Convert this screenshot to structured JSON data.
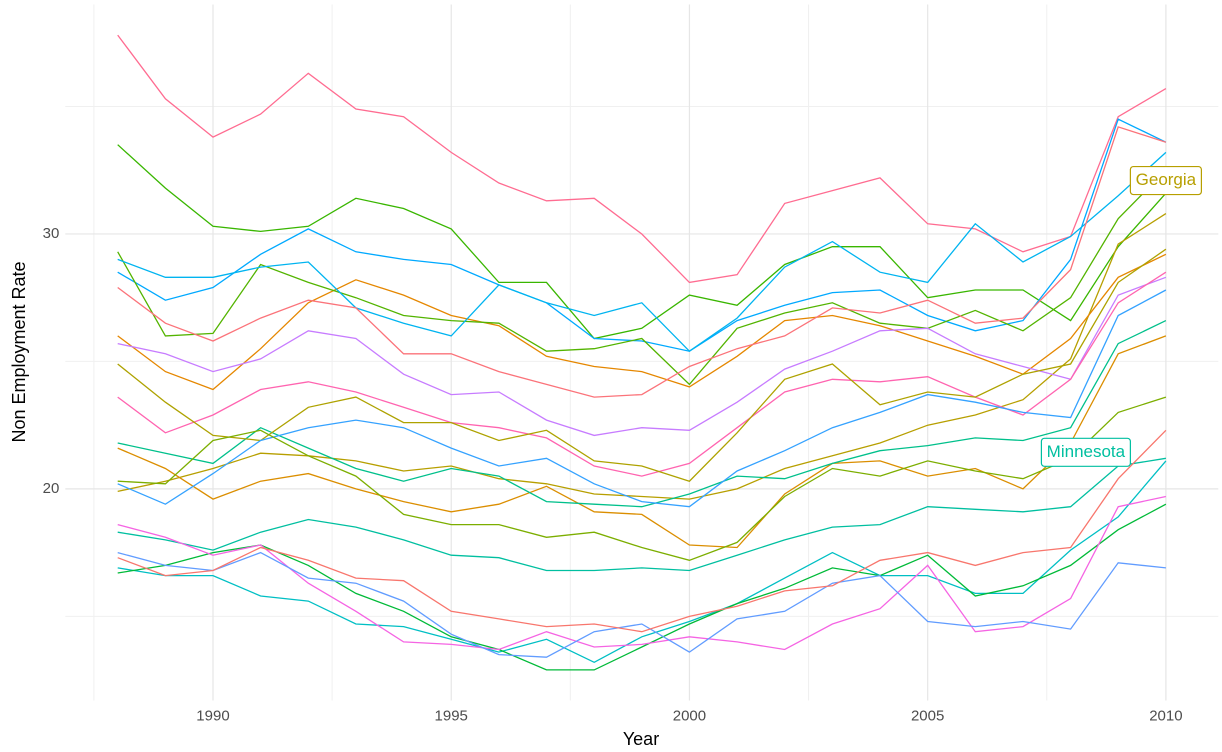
{
  "chart_data": {
    "type": "line",
    "x_label": "Year",
    "y_label": "Non Employment Rate",
    "x": [
      1988,
      1989,
      1990,
      1991,
      1992,
      1993,
      1994,
      1995,
      1996,
      1997,
      1998,
      1999,
      2000,
      2001,
      2002,
      2003,
      2004,
      2005,
      2006,
      2007,
      2008,
      2009,
      2010
    ],
    "xlim": [
      1986.9,
      2011.1
    ],
    "xticks": [
      1990,
      1995,
      2000,
      2005,
      2010
    ],
    "xminorticks": [
      1987.5,
      1992.5,
      1997.5,
      2002.5,
      2007.5
    ],
    "ylim": [
      11.7,
      39
    ],
    "yticks": [
      20,
      30
    ],
    "yminorticks": [
      15,
      25,
      35
    ],
    "grid": true,
    "series": [
      {
        "color": "#FF6C91",
        "values": [
          37.8,
          35.3,
          33.8,
          34.7,
          36.3,
          34.9,
          34.6,
          33.2,
          32.0,
          31.3,
          31.4,
          30.0,
          28.1,
          28.4,
          31.2,
          31.7,
          32.2,
          30.4,
          30.2,
          29.3,
          29.9,
          34.6,
          35.7
        ]
      },
      {
        "color": "#39B600",
        "values": [
          33.5,
          31.8,
          30.3,
          30.1,
          30.3,
          31.4,
          31.0,
          30.2,
          28.1,
          28.1,
          25.9,
          26.3,
          27.6,
          27.2,
          28.8,
          29.5,
          29.5,
          27.5,
          27.8,
          27.8,
          26.6,
          29.5,
          31.6
        ]
      },
      {
        "color": "#00A9FF",
        "values": [
          28.5,
          27.4,
          27.9,
          29.2,
          30.2,
          29.3,
          29.0,
          28.8,
          28.0,
          27.3,
          25.9,
          25.8,
          25.4,
          26.6,
          27.2,
          27.7,
          27.8,
          26.8,
          26.2,
          26.6,
          29.0,
          34.5,
          33.6
        ]
      },
      {
        "name": "Georgia",
        "color": "#B79F00",
        "values": [
          19.9,
          20.3,
          20.8,
          21.4,
          21.3,
          21.1,
          20.7,
          20.9,
          20.4,
          20.2,
          19.8,
          19.7,
          19.6,
          20.0,
          20.8,
          21.3,
          21.8,
          22.5,
          22.9,
          23.5,
          25.1,
          29.6,
          30.8
        ]
      },
      {
        "name": "Minnesota",
        "color": "#00BFA0",
        "values": [
          18.3,
          18.0,
          17.6,
          18.3,
          18.8,
          18.5,
          18.0,
          17.4,
          17.3,
          16.8,
          16.8,
          16.9,
          16.8,
          17.4,
          18.0,
          18.5,
          18.6,
          19.3,
          19.2,
          19.1,
          19.3,
          20.9,
          21.2
        ]
      },
      {
        "color": "#00BFC4",
        "values": [
          16.9,
          16.6,
          16.6,
          15.8,
          15.6,
          14.7,
          14.6,
          14.1,
          13.6,
          14.1,
          13.2,
          14.2,
          14.8,
          15.5,
          16.5,
          17.5,
          16.6,
          16.6,
          15.9,
          15.9,
          17.6,
          18.9,
          21.1
        ]
      },
      {
        "color": "#00BA38",
        "values": [
          16.7,
          17.0,
          17.5,
          17.8,
          17.0,
          15.9,
          15.2,
          14.2,
          13.7,
          12.9,
          12.9,
          13.8,
          14.7,
          15.5,
          16.1,
          16.9,
          16.6,
          17.4,
          15.8,
          16.2,
          17.0,
          18.4,
          19.4
        ]
      },
      {
        "color": "#F564E3",
        "values": [
          18.6,
          18.1,
          17.4,
          17.8,
          16.3,
          15.2,
          14.0,
          13.9,
          13.7,
          14.4,
          13.8,
          13.9,
          14.2,
          14.0,
          13.7,
          14.7,
          15.3,
          17.0,
          14.4,
          14.6,
          15.7,
          19.3,
          19.7
        ]
      },
      {
        "color": "#619CFF",
        "values": [
          17.5,
          17.0,
          16.8,
          17.5,
          16.5,
          16.3,
          15.6,
          14.3,
          13.5,
          13.4,
          14.4,
          14.7,
          13.6,
          14.9,
          15.2,
          16.3,
          16.6,
          14.8,
          14.6,
          14.8,
          14.5,
          17.1,
          16.9
        ]
      },
      {
        "color": "#F8766D",
        "values": [
          17.3,
          16.6,
          16.8,
          17.7,
          17.2,
          16.5,
          16.4,
          15.2,
          14.9,
          14.6,
          14.7,
          14.4,
          15.0,
          15.4,
          16.0,
          16.2,
          17.2,
          17.5,
          17.0,
          17.5,
          17.7,
          20.4,
          22.3
        ]
      },
      {
        "color": "#E58700",
        "values": [
          26.0,
          24.6,
          23.9,
          25.5,
          27.3,
          28.2,
          27.6,
          26.8,
          26.4,
          25.2,
          24.8,
          24.6,
          24.0,
          25.2,
          26.6,
          26.8,
          26.4,
          25.8,
          25.2,
          24.5,
          25.9,
          28.3,
          29.2
        ]
      },
      {
        "color": "#53B400",
        "values": [
          29.3,
          26.0,
          26.1,
          28.8,
          28.1,
          27.5,
          26.8,
          26.6,
          26.5,
          25.4,
          25.5,
          25.9,
          24.1,
          26.3,
          26.9,
          27.3,
          26.5,
          26.3,
          27.0,
          26.2,
          27.5,
          30.6,
          32.5
        ]
      },
      {
        "color": "#00B4F0",
        "values": [
          29.0,
          28.3,
          28.3,
          28.7,
          28.9,
          27.1,
          26.5,
          26.0,
          28.0,
          27.3,
          26.8,
          27.3,
          25.4,
          26.7,
          28.7,
          29.7,
          28.5,
          28.1,
          30.4,
          28.9,
          29.9,
          31.5,
          33.2
        ]
      },
      {
        "color": "#C77CFF",
        "values": [
          25.7,
          25.3,
          24.6,
          25.1,
          26.2,
          25.9,
          24.5,
          23.7,
          23.8,
          22.7,
          22.1,
          22.4,
          22.3,
          23.4,
          24.7,
          25.4,
          26.2,
          26.3,
          25.3,
          24.8,
          24.3,
          27.6,
          28.3
        ]
      },
      {
        "color": "#FF64B0",
        "values": [
          23.6,
          22.2,
          22.9,
          23.9,
          24.2,
          23.8,
          23.2,
          22.6,
          22.4,
          22.0,
          20.9,
          20.5,
          21.0,
          22.4,
          23.8,
          24.3,
          24.2,
          24.4,
          23.6,
          22.9,
          24.3,
          27.3,
          28.5
        ]
      },
      {
        "color": "#DB8E00",
        "values": [
          21.6,
          20.8,
          19.6,
          20.3,
          20.6,
          20.0,
          19.5,
          19.1,
          19.4,
          20.1,
          19.1,
          19.0,
          17.8,
          17.7,
          19.8,
          21.0,
          21.1,
          20.5,
          20.8,
          20.0,
          21.8,
          25.3,
          26.0
        ]
      },
      {
        "color": "#00C08B",
        "values": [
          21.8,
          21.4,
          21.0,
          22.4,
          21.6,
          20.8,
          20.3,
          20.8,
          20.5,
          19.5,
          19.4,
          19.3,
          19.8,
          20.5,
          20.4,
          21.0,
          21.5,
          21.7,
          22.0,
          21.9,
          22.4,
          25.7,
          26.6
        ]
      },
      {
        "color": "#AEA200",
        "values": [
          24.9,
          23.4,
          22.1,
          21.9,
          23.2,
          23.6,
          22.6,
          22.6,
          21.9,
          22.3,
          21.1,
          20.9,
          20.3,
          22.2,
          24.3,
          24.9,
          23.3,
          23.8,
          23.6,
          24.5,
          24.9,
          28.1,
          29.4
        ]
      },
      {
        "color": "#35A2FF",
        "values": [
          20.2,
          19.4,
          20.6,
          21.9,
          22.4,
          22.7,
          22.4,
          21.6,
          20.9,
          21.2,
          20.2,
          19.5,
          19.3,
          20.7,
          21.5,
          22.4,
          23.0,
          23.7,
          23.4,
          23.0,
          22.8,
          26.8,
          27.8
        ]
      },
      {
        "color": "#FB737A",
        "values": [
          27.9,
          26.5,
          25.8,
          26.7,
          27.4,
          27.1,
          25.3,
          25.3,
          24.6,
          24.1,
          23.6,
          23.7,
          24.8,
          25.5,
          26.0,
          27.1,
          26.9,
          27.4,
          26.5,
          26.7,
          28.6,
          34.2,
          33.6
        ]
      },
      {
        "color": "#7CAE00",
        "values": [
          20.3,
          20.2,
          21.9,
          22.3,
          21.3,
          20.5,
          19.0,
          18.6,
          18.6,
          18.1,
          18.3,
          17.7,
          17.2,
          17.9,
          19.7,
          20.8,
          20.5,
          21.1,
          20.7,
          20.4,
          21.2,
          23.0,
          23.6
        ]
      }
    ]
  }
}
